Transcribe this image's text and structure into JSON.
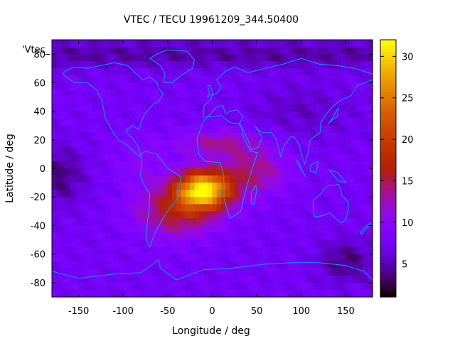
{
  "chart_data": {
    "type": "heatmap",
    "title": "VTEC / TECU 19961209_344.50400",
    "xlabel": "Longitude / deg",
    "ylabel": "Latitude / deg",
    "xlim": [
      -180,
      180
    ],
    "ylim": [
      -90,
      90
    ],
    "xticks": [
      -150,
      -100,
      -50,
      0,
      50,
      100,
      150
    ],
    "yticks": [
      -80,
      -60,
      -40,
      -20,
      0,
      20,
      40,
      60,
      80
    ],
    "series_label": "'Vtec_",
    "grid": false,
    "colorbar": {
      "min": 1,
      "max": 32,
      "ticks": [
        5,
        10,
        15,
        20,
        25,
        30
      ],
      "palette": "gnuplot-pm3d-black-blue-purple-red-yellow"
    },
    "peak": {
      "lon": -10,
      "lat": -15,
      "value": 31
    },
    "overlay": "continent-coastlines",
    "coastline_color": "#00a0ff"
  }
}
